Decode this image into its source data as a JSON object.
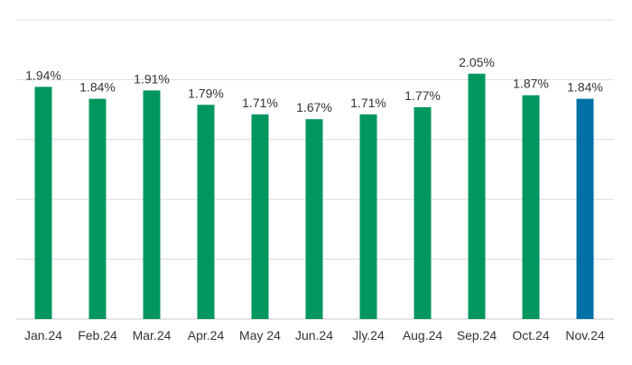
{
  "chart_data": {
    "type": "bar",
    "title": "",
    "xlabel": "",
    "ylabel": "",
    "ylim": [
      0,
      2.5
    ],
    "grid": true,
    "gridlines": [
      0,
      0.5,
      1.0,
      1.5,
      2.0,
      2.5
    ],
    "categories": [
      "Jan.24",
      "Feb.24",
      "Mar.24",
      "Apr.24",
      "May 24",
      "Jun.24",
      "Jly.24",
      "Aug.24",
      "Sep.24",
      "Oct.24",
      "Nov.24"
    ],
    "values": [
      1.94,
      1.84,
      1.91,
      1.79,
      1.71,
      1.67,
      1.71,
      1.77,
      2.05,
      1.87,
      1.84
    ],
    "data_labels": [
      "1.94%",
      "1.84%",
      "1.91%",
      "1.79%",
      "1.71%",
      "1.67%",
      "1.71%",
      "1.77%",
      "2.05%",
      "1.87%",
      "1.84%"
    ],
    "colors": {
      "default": "#00975f",
      "highlight": "#0071a5",
      "grid": "#dcdcdc",
      "axis": "#c8c8c8"
    },
    "highlight_index": 10
  }
}
